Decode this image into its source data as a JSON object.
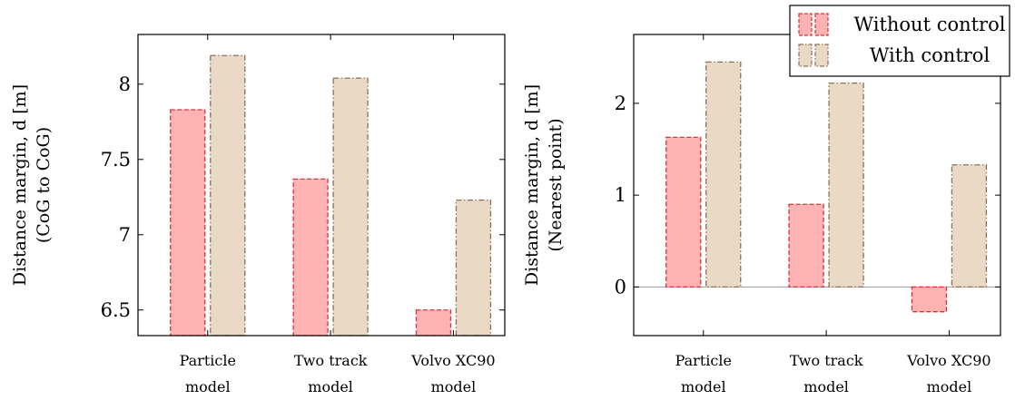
{
  "chart_data": [
    {
      "type": "bar",
      "categories": [
        "Particle model",
        "Two track model",
        "Volvo XC90 model"
      ],
      "category_lines": [
        [
          "Particle",
          "model"
        ],
        [
          "Two track",
          "model"
        ],
        [
          "Volvo XC90",
          "model"
        ]
      ],
      "series": [
        {
          "name": "Without control",
          "values": [
            7.83,
            7.37,
            6.5
          ]
        },
        {
          "name": "With control",
          "values": [
            8.19,
            8.04,
            7.23
          ]
        }
      ],
      "ylabel": [
        "Distance margin, d [m]",
        "(CoG to CoG)"
      ],
      "ylim": [
        6.33,
        8.33
      ],
      "yticks": [
        "6.5",
        "7",
        "7.5",
        "8"
      ],
      "grid": false,
      "title": "",
      "xlabel": ""
    },
    {
      "type": "bar",
      "categories": [
        "Particle model",
        "Two track model",
        "Volvo XC90 model"
      ],
      "category_lines": [
        [
          "Particle",
          "model"
        ],
        [
          "Two track",
          "model"
        ],
        [
          "Volvo XC90",
          "model"
        ]
      ],
      "series": [
        {
          "name": "Without control",
          "values": [
            1.63,
            0.9,
            -0.27
          ]
        },
        {
          "name": "With control",
          "values": [
            2.45,
            2.22,
            1.33
          ]
        }
      ],
      "ylabel": [
        "Distance margin, d [m]",
        "(Nearest point)"
      ],
      "ylim": [
        -0.53,
        2.75
      ],
      "yticks": [
        "0",
        "1",
        "2"
      ],
      "grid": false,
      "zero_line": true,
      "legend": {
        "position": "top-right",
        "entries": [
          "Without control",
          "With control"
        ]
      },
      "title": "",
      "xlabel": ""
    }
  ],
  "colors": {
    "without_fill": "#ffb3b3",
    "without_stroke": "#e0303a",
    "with_fill": "#ead9c4",
    "with_stroke": "#8c7058",
    "axis": "#000000",
    "zero_line": "#9a9a9a"
  }
}
